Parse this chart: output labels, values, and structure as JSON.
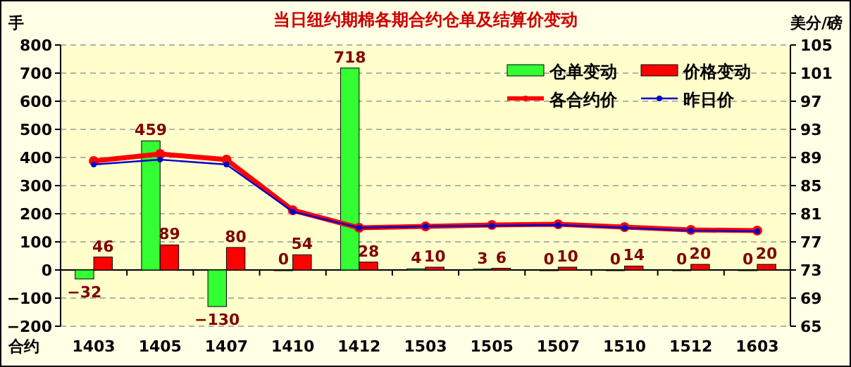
{
  "chart_data": {
    "type": "bar",
    "title": "当日纽约期棉各期合约仓单及结算价变动",
    "xlabel": "合约",
    "ylabel": "手",
    "y2label": "美分/磅",
    "categories": [
      "1403",
      "1405",
      "1407",
      "1410",
      "1412",
      "1503",
      "1505",
      "1507",
      "1510",
      "1512",
      "1603"
    ],
    "series": [
      {
        "name": "仓单变动",
        "color": "#33ff33",
        "values": [
          -32,
          459,
          -130,
          0,
          718,
          4,
          3,
          0,
          0,
          0,
          0
        ],
        "value_labels": [
          "−32",
          "459",
          "−130",
          "0",
          "718",
          "4",
          "3",
          "0",
          "0",
          "0",
          "0"
        ]
      },
      {
        "name": "价格变动",
        "color": "#ff0000",
        "values": [
          46,
          89,
          80,
          54,
          28,
          10,
          6,
          10,
          14,
          20,
          20
        ],
        "value_labels": [
          "46",
          "89",
          "80",
          "54",
          "28",
          "10",
          "6",
          "10",
          "14",
          "20",
          "20"
        ]
      },
      {
        "name": "各合约价",
        "type": "line",
        "axis": "y2",
        "color": "#ff0000",
        "marker": "circle",
        "values": [
          88.5,
          89.5,
          88.7,
          81.5,
          79.0,
          79.2,
          79.4,
          79.5,
          79.1,
          78.7,
          78.6
        ]
      },
      {
        "name": "昨日价",
        "type": "line",
        "axis": "y2",
        "color": "#0000cc",
        "marker": "circle",
        "values": [
          88.0,
          88.7,
          88.0,
          81.3,
          79.0,
          79.2,
          79.3,
          79.4,
          79.0,
          78.6,
          78.5
        ]
      }
    ],
    "ylim": [
      -200,
      800
    ],
    "yticks": [
      -200,
      -100,
      0,
      100,
      200,
      300,
      400,
      500,
      600,
      700,
      800
    ],
    "y2lim": [
      65,
      105
    ],
    "y2ticks": [
      65,
      69,
      73,
      77,
      81,
      85,
      89,
      93,
      97,
      101,
      105
    ],
    "grid": "y",
    "legend": "top right"
  }
}
